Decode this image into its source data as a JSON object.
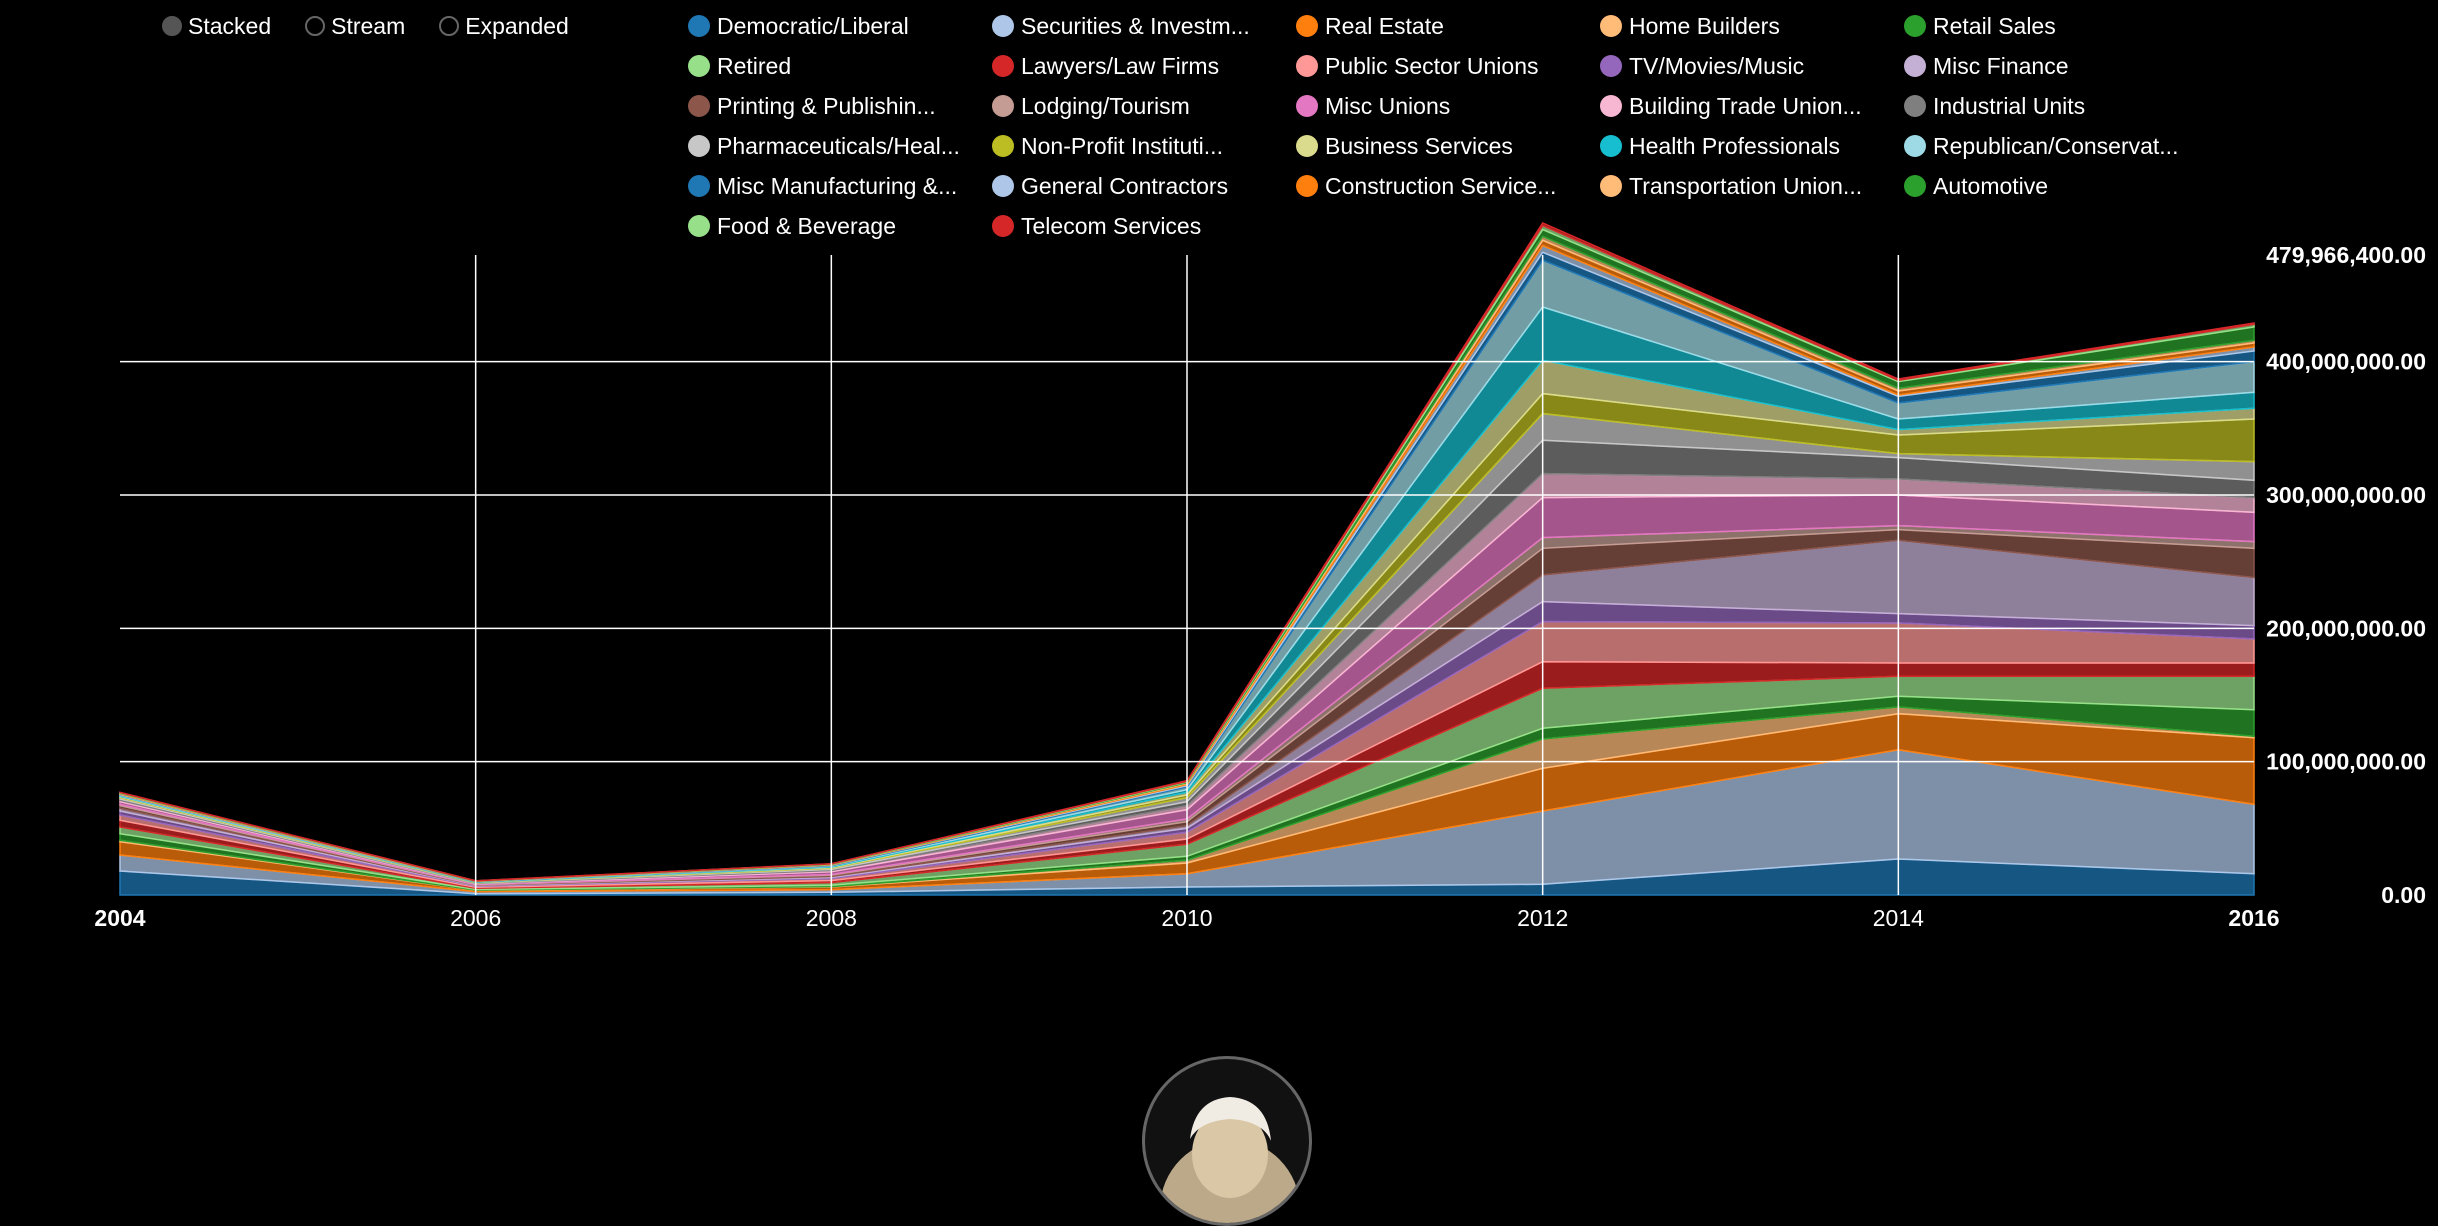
{
  "controls": [
    {
      "label": "Stacked",
      "active": true
    },
    {
      "label": "Stream",
      "active": false
    },
    {
      "label": "Expanded",
      "active": false
    }
  ],
  "colors": {
    "background": "#000000",
    "gridline": "#ffffff",
    "text": "#ffffff"
  },
  "chart_data": {
    "type": "area",
    "stacked": true,
    "title": "",
    "xlabel": "",
    "ylabel": "",
    "x": [
      2004,
      2006,
      2008,
      2010,
      2012,
      2014,
      2016
    ],
    "x_ticks": [
      "2004",
      "2006",
      "2008",
      "2010",
      "2012",
      "2014",
      "2016"
    ],
    "y_ticks": [
      "0.00",
      "100,000,000.00",
      "200,000,000.00",
      "300,000,000.00",
      "400,000,000.00",
      "479,966,400.00"
    ],
    "ylim": [
      0,
      479966400
    ],
    "grid": true,
    "legend_position": "top",
    "series": [
      {
        "name": "Democratic/Liberal",
        "color": "#1f77b4",
        "values": [
          18000000,
          1000000,
          2000000,
          6000000,
          8000000,
          27000000,
          16000000
        ]
      },
      {
        "name": "Securities & Investm...",
        "color": "#aec7e8",
        "values": [
          12000000,
          1500000,
          2000000,
          10000000,
          55000000,
          82000000,
          52000000
        ]
      },
      {
        "name": "Real Estate",
        "color": "#ff7f0e",
        "values": [
          10000000,
          1000000,
          2000000,
          8000000,
          32000000,
          27000000,
          50000000
        ]
      },
      {
        "name": "Home Builders",
        "color": "#ffbb78",
        "values": [
          1000000,
          200000,
          300000,
          2000000,
          22000000,
          5000000,
          1000000
        ]
      },
      {
        "name": "Retail Sales",
        "color": "#2ca02c",
        "values": [
          5000000,
          500000,
          1000000,
          3000000,
          8000000,
          8000000,
          20000000
        ]
      },
      {
        "name": "Retired",
        "color": "#98df8a",
        "values": [
          5000000,
          800000,
          2000000,
          9000000,
          30000000,
          15000000,
          25000000
        ]
      },
      {
        "name": "Lawyers/Law Firms",
        "color": "#d62728",
        "values": [
          5000000,
          800000,
          1500000,
          4000000,
          20000000,
          10000000,
          10000000
        ]
      },
      {
        "name": "Public Sector Unions",
        "color": "#ff9896",
        "values": [
          4000000,
          800000,
          1500000,
          5000000,
          30000000,
          30000000,
          18000000
        ]
      },
      {
        "name": "TV/Movies/Music",
        "color": "#9467bd",
        "values": [
          3000000,
          400000,
          800000,
          3000000,
          15000000,
          7000000,
          10000000
        ]
      },
      {
        "name": "Misc Finance",
        "color": "#c5b0d5",
        "values": [
          2000000,
          300000,
          800000,
          2000000,
          20000000,
          55000000,
          36000000
        ]
      },
      {
        "name": "Printing & Publishin...",
        "color": "#8c564b",
        "values": [
          2000000,
          300000,
          1000000,
          3000000,
          20000000,
          8000000,
          22000000
        ]
      },
      {
        "name": "Lodging/Tourism",
        "color": "#c49c94",
        "values": [
          1000000,
          200000,
          500000,
          2000000,
          8000000,
          3000000,
          5000000
        ]
      },
      {
        "name": "Misc Unions",
        "color": "#e377c2",
        "values": [
          2000000,
          500000,
          2000000,
          7000000,
          30000000,
          23000000,
          22000000
        ]
      },
      {
        "name": "Building Trade Union...",
        "color": "#f7b6d2",
        "values": [
          1000000,
          300000,
          1000000,
          3000000,
          18000000,
          12000000,
          11000000
        ]
      },
      {
        "name": "Industrial Units",
        "color": "#7f7f7f",
        "values": [
          1000000,
          300000,
          800000,
          3000000,
          25000000,
          16000000,
          13000000
        ]
      },
      {
        "name": "Pharmaceuticals/Heal...",
        "color": "#c7c7c7",
        "values": [
          1000000,
          300000,
          800000,
          3000000,
          20000000,
          3000000,
          14000000
        ]
      },
      {
        "name": "Non-Profit Instituti...",
        "color": "#bcbd22",
        "values": [
          500000,
          200000,
          500000,
          2000000,
          15000000,
          14000000,
          32000000
        ]
      },
      {
        "name": "Business Services",
        "color": "#dbdb8d",
        "values": [
          500000,
          200000,
          500000,
          2000000,
          25000000,
          4000000,
          8000000
        ]
      },
      {
        "name": "Health Professionals",
        "color": "#17becf",
        "values": [
          500000,
          200000,
          500000,
          2000000,
          40000000,
          8000000,
          12000000
        ]
      },
      {
        "name": "Republican/Conservat...",
        "color": "#9edae5",
        "values": [
          500000,
          200000,
          500000,
          2000000,
          35000000,
          12000000,
          23000000
        ]
      },
      {
        "name": "Misc Manufacturing &...",
        "color": "#1f77b4",
        "values": [
          300000,
          100000,
          300000,
          1000000,
          6000000,
          5000000,
          8000000
        ]
      },
      {
        "name": "General Contractors",
        "color": "#aec7e8",
        "values": [
          300000,
          100000,
          200000,
          800000,
          5000000,
          1000000,
          3000000
        ]
      },
      {
        "name": "Construction Service...",
        "color": "#ff7f0e",
        "values": [
          300000,
          100000,
          200000,
          800000,
          4000000,
          3000000,
          3000000
        ]
      },
      {
        "name": "Transportation Union...",
        "color": "#ffbb78",
        "values": [
          300000,
          100000,
          200000,
          600000,
          3000000,
          2000000,
          2000000
        ]
      },
      {
        "name": "Automotive",
        "color": "#2ca02c",
        "values": [
          300000,
          100000,
          200000,
          600000,
          5000000,
          5000000,
          10000000
        ]
      },
      {
        "name": "Food & Beverage",
        "color": "#98df8a",
        "values": [
          300000,
          100000,
          200000,
          500000,
          3000000,
          1000000,
          2000000
        ]
      },
      {
        "name": "Telecom Services",
        "color": "#d62728",
        "values": [
          200000,
          100000,
          200000,
          500000,
          2000000,
          1000000,
          1000000
        ]
      }
    ]
  }
}
